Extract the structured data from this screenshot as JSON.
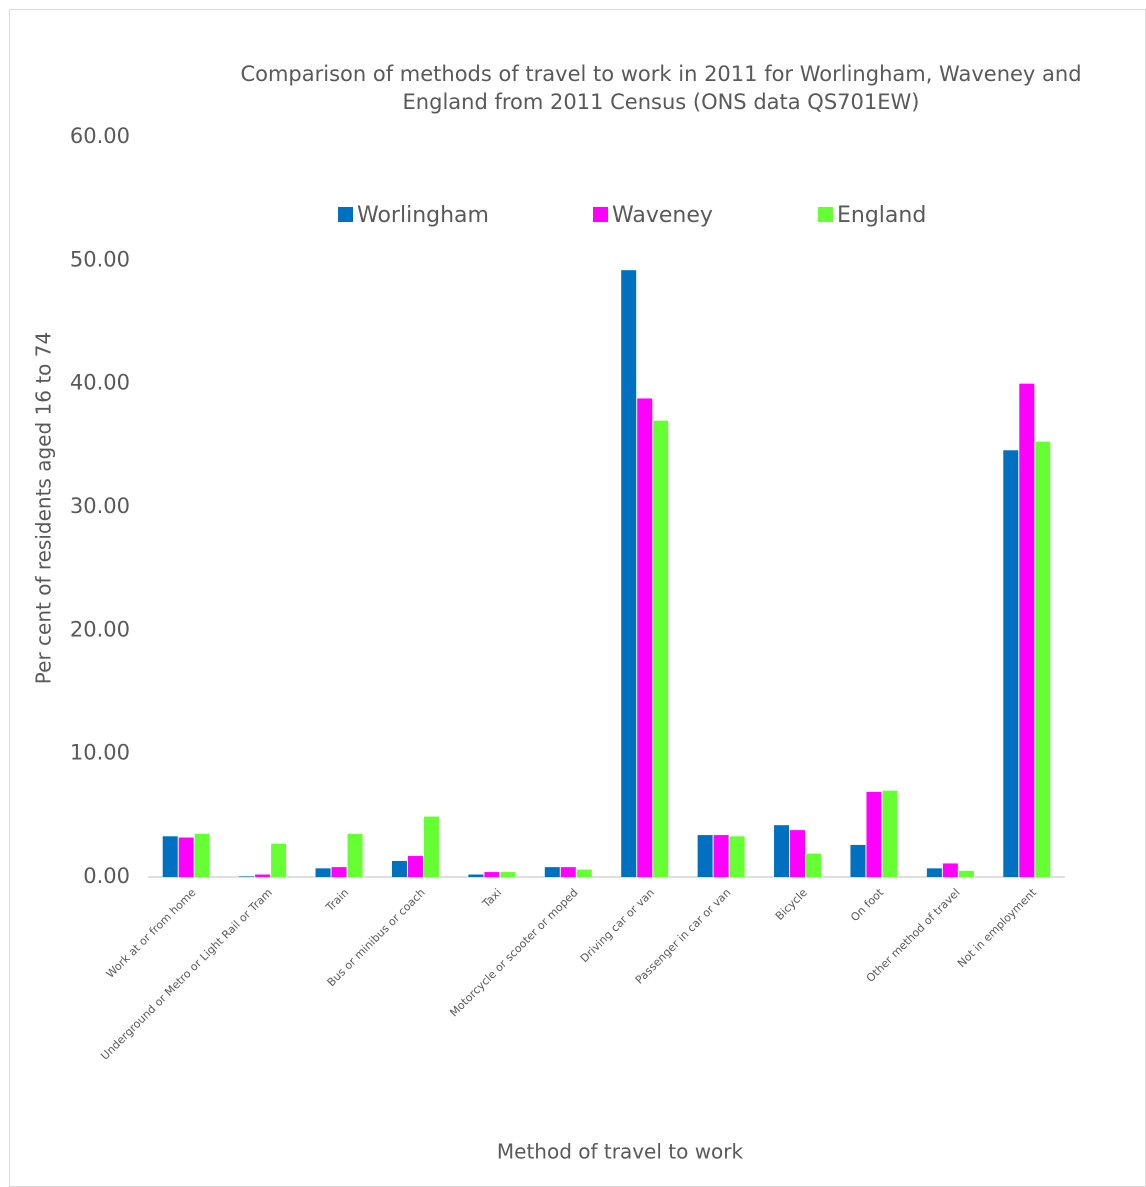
{
  "chart_data": {
    "type": "bar",
    "title": "Comparison of methods of travel to work in 2011 for Worlingham, Waveney and England from 2011 Census (ONS data QS701EW)",
    "x_label": "Method of travel to work",
    "y_label": "Per cent of residents aged 16 to 74",
    "categories": [
      "Work at or from home",
      "Underground or Metro or Light Rail or Tram",
      "Train",
      "Bus or minibus or coach",
      "Taxi",
      "Motorcycle or scooter or moped",
      "Driving car or van",
      "Passenger in car or van",
      "Bicycle",
      "On foot",
      "Other method of travel",
      "Not in employment"
    ],
    "series": [
      {
        "name": "Worlingham",
        "color": "#0070c0",
        "values": [
          3.3,
          0.05,
          0.7,
          1.3,
          0.2,
          0.8,
          49.2,
          3.4,
          4.2,
          2.6,
          0.7,
          34.6
        ]
      },
      {
        "name": "Waveney",
        "color": "#ff00ff",
        "values": [
          3.2,
          0.2,
          0.8,
          1.7,
          0.4,
          0.8,
          38.8,
          3.4,
          3.8,
          6.9,
          1.1,
          40.0
        ]
      },
      {
        "name": "England",
        "color": "#66ff33",
        "values": [
          3.5,
          2.7,
          3.5,
          4.9,
          0.4,
          0.6,
          37.0,
          3.3,
          1.9,
          7.0,
          0.5,
          35.3
        ]
      }
    ],
    "ylim": [
      0,
      60
    ],
    "yticks": [
      {
        "value": 0,
        "label": "0.00"
      },
      {
        "value": 10,
        "label": "10.00"
      },
      {
        "value": 20,
        "label": "20.00"
      },
      {
        "value": 30,
        "label": "30.00"
      },
      {
        "value": 40,
        "label": "40.00"
      },
      {
        "value": 50,
        "label": "50.00"
      },
      {
        "value": 60,
        "label": "60.00"
      }
    ],
    "grid": false,
    "legend": "top"
  }
}
